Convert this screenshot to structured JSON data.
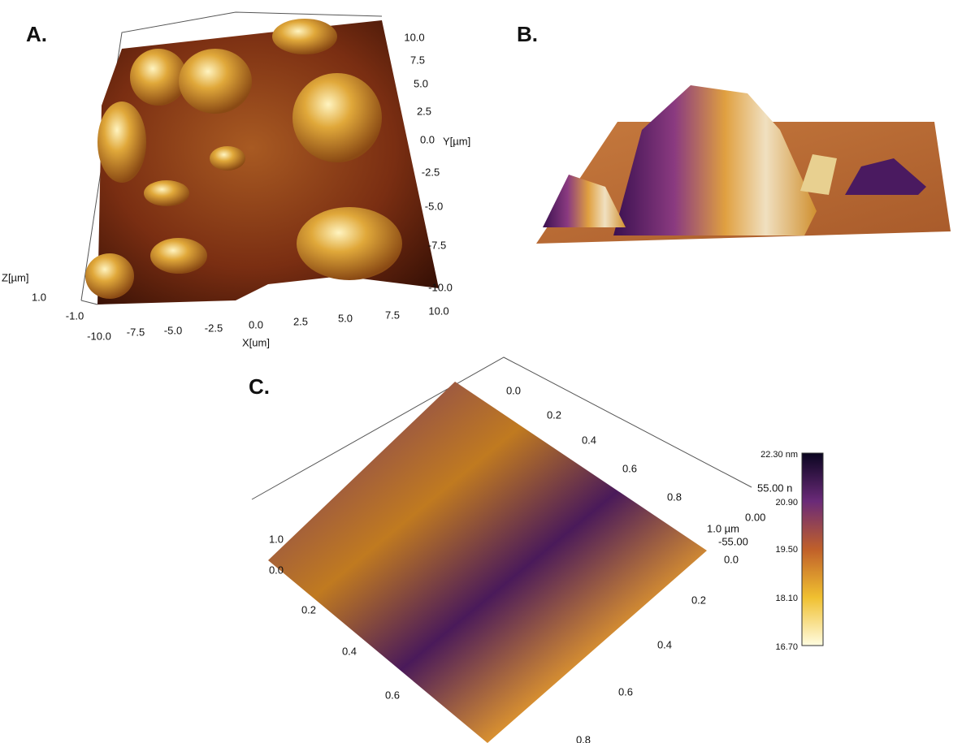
{
  "panels": {
    "a": {
      "label": "A.",
      "y_ticks": [
        "10.0",
        "7.5",
        "5.0",
        "2.5",
        "0.0",
        "-2.5",
        "-5.0",
        "-7.5",
        "-10.0"
      ],
      "y_axis_label": "Y[µm]",
      "x_ticks": [
        "-10.0",
        "-7.5",
        "-5.0",
        "-2.5",
        "0.0",
        "2.5",
        "5.0",
        "7.5",
        "10.0"
      ],
      "x_axis_label": "X[um]",
      "z_axis_label": "Z[µm]",
      "z_ticks": [
        "1.0",
        "-1.0"
      ]
    },
    "b": {
      "label": "B."
    },
    "c": {
      "label": "C.",
      "top_ticks": [
        "0.0",
        "0.2",
        "0.4",
        "0.6",
        "0.8",
        "1.0 µm"
      ],
      "z_ticks": [
        "55.00 n",
        "0.00",
        "-55.00"
      ],
      "right_top_tick": "0.0",
      "left_ticks": [
        "1.0",
        "0.0",
        "0.2",
        "0.4",
        "0.6"
      ],
      "right_ticks": [
        "0.2",
        "0.4",
        "0.6"
      ],
      "bottom_tick": "0.8",
      "colorbar": {
        "ticks": [
          "22.30 nm",
          "20.90",
          "19.50",
          "18.10",
          "16.70"
        ]
      }
    }
  }
}
